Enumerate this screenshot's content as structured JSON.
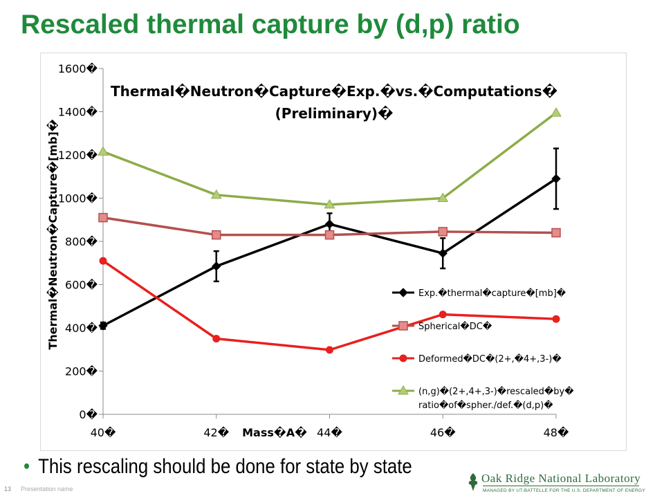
{
  "slide": {
    "title": "Rescaled thermal capture by (d,p) ratio",
    "bullet": "This rescaling should be done for state by state",
    "slide_number": "13",
    "footer_text": "Presentation name",
    "logo_name": "Oak Ridge National Laboratory",
    "logo_subtitle": "MANAGED BY UT-BATTELLE FOR THE U.S. DEPARTMENT OF ENERGY",
    "accent_color": "#1f8a3c"
  },
  "chart_data": {
    "type": "line",
    "title": "Thermal Neutron Capture Exp. vs. Computations (Preliminary)",
    "title_lines": [
      "Thermal�Neutron�Capture�Exp.�vs.�Computations�",
      "(Preliminary)�"
    ],
    "xlabel": "Mass�A�",
    "ylabel": "Thermal�Neutron�Capture�[mb]�",
    "categories": [
      40,
      42,
      44,
      46,
      48
    ],
    "x_tick_labels": [
      "40�",
      "42�",
      "44�",
      "46�",
      "48�"
    ],
    "ylim": [
      0,
      1600
    ],
    "y_ticks": [
      0,
      200,
      400,
      600,
      800,
      1000,
      1200,
      1400,
      1600
    ],
    "y_tick_labels": [
      "0�",
      "200�",
      "400�",
      "600�",
      "800�",
      "1000�",
      "1200�",
      "1400�",
      "1600�"
    ],
    "grid": false,
    "legend_position": "right",
    "series": [
      {
        "name": "Exp.�thermal�capture�[mb]�",
        "legend_lines": [
          "Exp.�thermal�capture�[mb]�"
        ],
        "color": "#000000",
        "marker": "diamond",
        "values": [
          410,
          685,
          880,
          745,
          1090
        ],
        "errors": [
          15,
          70,
          50,
          70,
          140
        ]
      },
      {
        "name": "Spherical�DC�",
        "legend_lines": [
          "Spherical�DC�"
        ],
        "color": "#b3504e",
        "marker": "square",
        "values": [
          910,
          830,
          830,
          845,
          840
        ]
      },
      {
        "name": "Deformed�DC�(2+,�4+,3-)�",
        "legend_lines": [
          "Deformed�DC�(2+,�4+,3-)�"
        ],
        "color": "#e8201e",
        "marker": "circle",
        "values": [
          710,
          350,
          298,
          462,
          441
        ]
      },
      {
        "name": "(n,g)�(2+,4+,3-)�rescaled�by� ratio�of�spher./def.�(d,p)�",
        "legend_lines": [
          "(n,g)�(2+,4+,3-)�rescaled�by�",
          "ratio�of�spher./def.�(d,p)�"
        ],
        "color": "#8dac48",
        "marker": "triangle",
        "values": [
          1215,
          1015,
          970,
          1000,
          1395
        ]
      }
    ]
  }
}
